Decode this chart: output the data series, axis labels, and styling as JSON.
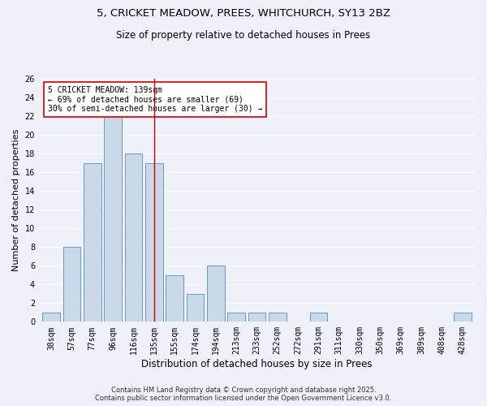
{
  "title_line1": "5, CRICKET MEADOW, PREES, WHITCHURCH, SY13 2BZ",
  "title_line2": "Size of property relative to detached houses in Prees",
  "categories": [
    "38sqm",
    "57sqm",
    "77sqm",
    "96sqm",
    "116sqm",
    "135sqm",
    "155sqm",
    "174sqm",
    "194sqm",
    "213sqm",
    "233sqm",
    "252sqm",
    "272sqm",
    "291sqm",
    "311sqm",
    "330sqm",
    "350sqm",
    "369sqm",
    "389sqm",
    "408sqm",
    "428sqm"
  ],
  "values": [
    1,
    8,
    17,
    22,
    18,
    17,
    5,
    3,
    6,
    1,
    1,
    1,
    0,
    1,
    0,
    0,
    0,
    0,
    0,
    0,
    1
  ],
  "bar_color": "#c9d9e8",
  "bar_edge_color": "#5a8ab5",
  "ylabel": "Number of detached properties",
  "xlabel": "Distribution of detached houses by size in Prees",
  "ylim": [
    0,
    26
  ],
  "yticks": [
    0,
    2,
    4,
    6,
    8,
    10,
    12,
    14,
    16,
    18,
    20,
    22,
    24,
    26
  ],
  "vline_x": 5,
  "vline_color": "#cc0000",
  "annotation_text_line1": "5 CRICKET MEADOW: 139sqm",
  "annotation_text_line2": "← 69% of detached houses are smaller (69)",
  "annotation_text_line3": "30% of semi-detached houses are larger (30) →",
  "annotation_box_color": "#cc0000",
  "annotation_fill": "#ffffff",
  "footer_line1": "Contains HM Land Registry data © Crown copyright and database right 2025.",
  "footer_line2": "Contains public sector information licensed under the Open Government Licence v3.0.",
  "bg_color": "#eef2f8",
  "grid_color": "#ffffff",
  "title1_fontsize": 9.5,
  "title2_fontsize": 8.5,
  "ylabel_fontsize": 8,
  "xlabel_fontsize": 8.5,
  "tick_fontsize": 7,
  "ann_fontsize": 7,
  "footer_fontsize": 6
}
